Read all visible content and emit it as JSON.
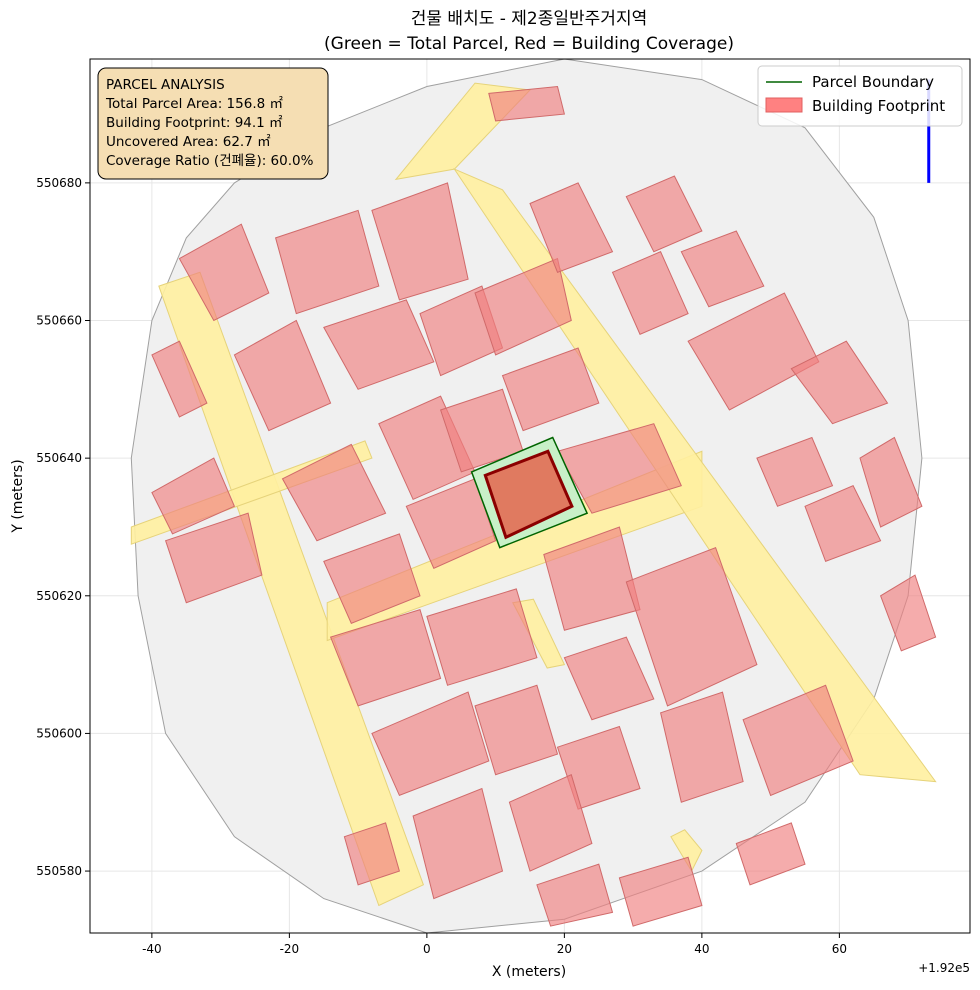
{
  "title_line1": "건물 배치도 - 제2종일반주거지역",
  "title_line2": "(Green = Total Parcel, Red = Building Coverage)",
  "xlabel": "X (meters)",
  "ylabel": "Y (meters)",
  "x_offset_label": "+1.92e5",
  "legend": {
    "parcel": "Parcel Boundary",
    "building": "Building Footprint"
  },
  "info": {
    "heading": "PARCEL ANALYSIS",
    "total_area": "Total Parcel Area: 156.8 ㎡",
    "footprint": "Building Footprint: 94.1 ㎡",
    "uncovered": "Uncovered Area: 62.7 ㎡",
    "coverage": "Coverage Ratio (건폐율): 60.0%"
  },
  "colors": {
    "parcel_fill": "#c8f0c8",
    "parcel_edge": "#006400",
    "building_fill": "#f08080",
    "building_edge": "#8b0000",
    "road_fill": "#fff0a0",
    "context_fill": "#f0f0f0",
    "north_arrow": "#0000ff"
  },
  "chart_data": {
    "type": "map",
    "xlim": [
      -49,
      79
    ],
    "ylim": [
      550571,
      550698
    ],
    "x_offset": 192000,
    "x_ticks": [
      -40,
      -20,
      0,
      20,
      40,
      60
    ],
    "y_ticks": [
      550580,
      550600,
      550620,
      550640,
      550660,
      550680
    ],
    "grid": true,
    "legend_position": "top-right",
    "info_box_position": "top-left",
    "target_parcel": [
      [
        6.5,
        550638
      ],
      [
        18.3,
        550643
      ],
      [
        23.3,
        550632
      ],
      [
        10.6,
        550627
      ]
    ],
    "target_building": [
      [
        8.5,
        550637.5
      ],
      [
        17.6,
        550641
      ],
      [
        21.1,
        550633
      ],
      [
        11.5,
        550628.5
      ]
    ],
    "north_arrow": {
      "x": 73,
      "y_from": 550680,
      "y_to": 550695
    },
    "roads": [
      [
        [
          -39,
          550665
        ],
        [
          -33,
          550667
        ],
        [
          -0.5,
          550578
        ],
        [
          -7,
          550575
        ]
      ],
      [
        [
          -43,
          550630
        ],
        [
          -43,
          550627.5
        ],
        [
          -8,
          550640
        ],
        [
          -9,
          550642.5
        ]
      ],
      [
        [
          -14.5,
          550613.5
        ],
        [
          40,
          550633
        ],
        [
          40,
          550641
        ],
        [
          -14.5,
          550619
        ]
      ],
      [
        [
          -4.5,
          550680.5
        ],
        [
          4,
          550682
        ],
        [
          15,
          550693.5
        ],
        [
          7,
          550694.5
        ]
      ],
      [
        [
          4,
          550682
        ],
        [
          11,
          550679
        ],
        [
          74,
          550593
        ],
        [
          63,
          550594
        ]
      ],
      [
        [
          12.5,
          550619
        ],
        [
          15.5,
          550619.5
        ],
        [
          20,
          550610
        ],
        [
          17.5,
          550609.5
        ]
      ],
      [
        [
          35.5,
          550585
        ],
        [
          37.5,
          550586
        ],
        [
          40,
          550583
        ],
        [
          38.5,
          550580
        ]
      ]
    ],
    "context_shapes": [
      [
        [
          -43,
          550640
        ],
        [
          -40,
          550660
        ],
        [
          -35,
          550672
        ],
        [
          -28,
          550680
        ],
        [
          -15,
          550688
        ],
        [
          0,
          550694
        ],
        [
          20,
          550698
        ],
        [
          40,
          550695
        ],
        [
          55,
          550688
        ],
        [
          65,
          550675
        ],
        [
          70,
          550660
        ],
        [
          72,
          550640
        ],
        [
          70,
          550620
        ],
        [
          65,
          550605
        ],
        [
          55,
          550590
        ],
        [
          40,
          550580
        ],
        [
          20,
          550573
        ],
        [
          0,
          550571
        ],
        [
          -15,
          550576
        ],
        [
          -28,
          550585
        ],
        [
          -38,
          550600
        ],
        [
          -42,
          550620
        ]
      ]
    ],
    "buildings": [
      [
        [
          -40,
          550655
        ],
        [
          -36,
          550657
        ],
        [
          -32,
          550648
        ],
        [
          -36,
          550646
        ]
      ],
      [
        [
          -40,
          550635
        ],
        [
          -31,
          550640
        ],
        [
          -28,
          550633
        ],
        [
          -37,
          550629
        ]
      ],
      [
        [
          -38,
          550628
        ],
        [
          -26,
          550632
        ],
        [
          -24,
          550623
        ],
        [
          -35,
          550619
        ]
      ],
      [
        [
          -36,
          550669
        ],
        [
          -27,
          550674
        ],
        [
          -23,
          550664
        ],
        [
          -31,
          550660
        ]
      ],
      [
        [
          -28,
          550655
        ],
        [
          -19,
          550660
        ],
        [
          -14,
          550648
        ],
        [
          -23,
          550644
        ]
      ],
      [
        [
          -22,
          550672
        ],
        [
          -10,
          550676
        ],
        [
          -7,
          550665
        ],
        [
          -19,
          550661
        ]
      ],
      [
        [
          -21,
          550637
        ],
        [
          -11,
          550642
        ],
        [
          -6,
          550632
        ],
        [
          -16,
          550628
        ]
      ],
      [
        [
          -15,
          550625
        ],
        [
          -4,
          550629
        ],
        [
          -1,
          550620
        ],
        [
          -11,
          550616
        ]
      ],
      [
        [
          -15,
          550659
        ],
        [
          -3,
          550663
        ],
        [
          1,
          550654
        ],
        [
          -10,
          550650
        ]
      ],
      [
        [
          -8,
          550676
        ],
        [
          3,
          550680
        ],
        [
          6,
          550666
        ],
        [
          -4,
          550663
        ]
      ],
      [
        [
          -7,
          550645
        ],
        [
          2,
          550649
        ],
        [
          7,
          550638
        ],
        [
          -2,
          550634
        ]
      ],
      [
        [
          -3,
          550633
        ],
        [
          7,
          550637
        ],
        [
          10,
          550628
        ],
        [
          1,
          550624
        ]
      ],
      [
        [
          -1,
          550661
        ],
        [
          8,
          550665
        ],
        [
          11,
          550656
        ],
        [
          2,
          550652
        ]
      ],
      [
        [
          2,
          550647
        ],
        [
          11,
          550650
        ],
        [
          14,
          550641
        ],
        [
          5,
          550638
        ]
      ],
      [
        [
          7,
          550664
        ],
        [
          19,
          550669
        ],
        [
          21,
          550660
        ],
        [
          10,
          550655
        ]
      ],
      [
        [
          11,
          550652
        ],
        [
          22,
          550656
        ],
        [
          25,
          550648
        ],
        [
          14,
          550644
        ]
      ],
      [
        [
          19,
          550641
        ],
        [
          33,
          550645
        ],
        [
          37,
          550636
        ],
        [
          24,
          550632
        ]
      ],
      [
        [
          15,
          550677
        ],
        [
          22,
          550680
        ],
        [
          27,
          550670
        ],
        [
          19,
          550667
        ]
      ],
      [
        [
          29,
          550678
        ],
        [
          36,
          550681
        ],
        [
          40,
          550673
        ],
        [
          33,
          550670
        ]
      ],
      [
        [
          27,
          550667
        ],
        [
          34,
          550670
        ],
        [
          38,
          550661
        ],
        [
          31,
          550658
        ]
      ],
      [
        [
          37,
          550670
        ],
        [
          45,
          550673
        ],
        [
          49,
          550665
        ],
        [
          41,
          550662
        ]
      ],
      [
        [
          38,
          550657
        ],
        [
          52,
          550664
        ],
        [
          57,
          550654
        ],
        [
          44,
          550647
        ]
      ],
      [
        [
          48,
          550640
        ],
        [
          56,
          550643
        ],
        [
          59,
          550636
        ],
        [
          51,
          550633
        ]
      ],
      [
        [
          53,
          550653
        ],
        [
          61,
          550657
        ],
        [
          67,
          550648
        ],
        [
          59,
          550645
        ]
      ],
      [
        [
          55,
          550633
        ],
        [
          62,
          550636
        ],
        [
          66,
          550628
        ],
        [
          58,
          550625
        ]
      ],
      [
        [
          63,
          550640
        ],
        [
          68,
          550643
        ],
        [
          72,
          550633
        ],
        [
          66,
          550630
        ]
      ],
      [
        [
          66,
          550620
        ],
        [
          71,
          550623
        ],
        [
          74,
          550614
        ],
        [
          69,
          550612
        ]
      ],
      [
        [
          17,
          550626
        ],
        [
          28,
          550630
        ],
        [
          31,
          550618
        ],
        [
          20,
          550615
        ]
      ],
      [
        [
          29,
          550622
        ],
        [
          42,
          550627
        ],
        [
          48,
          550610
        ],
        [
          35,
          550604
        ]
      ],
      [
        [
          -14,
          550614
        ],
        [
          -1,
          550618
        ],
        [
          2,
          550608
        ],
        [
          -10,
          550604
        ]
      ],
      [
        [
          0,
          550617
        ],
        [
          13,
          550621
        ],
        [
          16,
          550611
        ],
        [
          3,
          550607
        ]
      ],
      [
        [
          20,
          550611
        ],
        [
          29,
          550614
        ],
        [
          33,
          550605
        ],
        [
          24,
          550602
        ]
      ],
      [
        [
          -8,
          550600
        ],
        [
          6,
          550606
        ],
        [
          9,
          550596
        ],
        [
          -4,
          550591
        ]
      ],
      [
        [
          7,
          550604
        ],
        [
          16,
          550607
        ],
        [
          19,
          550597
        ],
        [
          10,
          550594
        ]
      ],
      [
        [
          19,
          550598
        ],
        [
          28,
          550601
        ],
        [
          31,
          550592
        ],
        [
          22,
          550589
        ]
      ],
      [
        [
          34,
          550603
        ],
        [
          43,
          550606
        ],
        [
          46,
          550593
        ],
        [
          37,
          550590
        ]
      ],
      [
        [
          46,
          550602
        ],
        [
          58,
          550607
        ],
        [
          62,
          550596
        ],
        [
          50,
          550591
        ]
      ],
      [
        [
          -2,
          550588
        ],
        [
          8,
          550592
        ],
        [
          11,
          550580
        ],
        [
          1,
          550576
        ]
      ],
      [
        [
          12,
          550590
        ],
        [
          21,
          550594
        ],
        [
          24,
          550584
        ],
        [
          15,
          550580
        ]
      ],
      [
        [
          16,
          550578
        ],
        [
          25,
          550581
        ],
        [
          27,
          550574
        ],
        [
          18,
          550572
        ]
      ],
      [
        [
          28,
          550579
        ],
        [
          38,
          550582
        ],
        [
          40,
          550575
        ],
        [
          30,
          550572
        ]
      ],
      [
        [
          45,
          550584
        ],
        [
          53,
          550587
        ],
        [
          55,
          550581
        ],
        [
          47,
          550578
        ]
      ],
      [
        [
          9,
          550693
        ],
        [
          19,
          550694
        ],
        [
          20,
          550690
        ],
        [
          10,
          550689
        ]
      ],
      [
        [
          -12,
          550585
        ],
        [
          -6,
          550587
        ],
        [
          -4,
          550580
        ],
        [
          -10,
          550578
        ]
      ]
    ]
  }
}
